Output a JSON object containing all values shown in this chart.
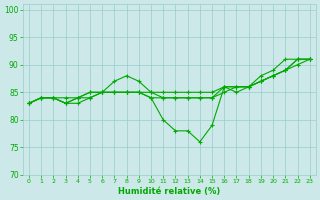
{
  "xlabel": "Humidité relative (%)",
  "xlim": [
    -0.5,
    23.5
  ],
  "ylim": [
    70,
    101
  ],
  "yticks": [
    70,
    75,
    80,
    85,
    90,
    95,
    100
  ],
  "xticks": [
    0,
    1,
    2,
    3,
    4,
    5,
    6,
    7,
    8,
    9,
    10,
    11,
    12,
    13,
    14,
    15,
    16,
    17,
    18,
    19,
    20,
    21,
    22,
    23
  ],
  "bg_color": "#cce8e8",
  "grid_color": "#99cccc",
  "line_color": "#00aa00",
  "lines": [
    [
      83,
      84,
      84,
      83,
      83,
      84,
      85,
      87,
      88,
      87,
      85,
      84,
      84,
      84,
      84,
      84,
      86,
      86,
      86,
      88,
      89,
      91,
      91,
      91
    ],
    [
      83,
      84,
      84,
      83,
      84,
      85,
      85,
      85,
      85,
      85,
      85,
      85,
      85,
      85,
      85,
      85,
      86,
      86,
      86,
      87,
      88,
      89,
      90,
      91
    ],
    [
      83,
      84,
      84,
      83,
      84,
      85,
      85,
      85,
      85,
      85,
      84,
      80,
      78,
      78,
      76,
      79,
      86,
      85,
      86,
      87,
      88,
      89,
      91,
      91
    ],
    [
      83,
      84,
      84,
      84,
      84,
      84,
      85,
      85,
      85,
      85,
      84,
      84,
      84,
      84,
      84,
      84,
      85,
      86,
      86,
      87,
      88,
      89,
      91,
      91
    ]
  ]
}
